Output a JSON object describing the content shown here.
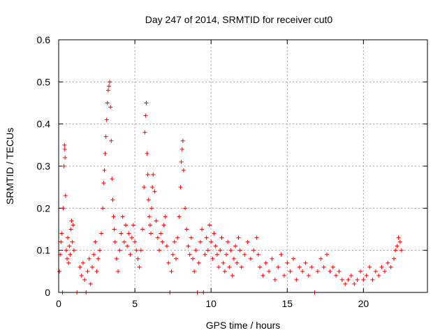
{
  "chart_data": {
    "type": "scatter",
    "title": "Day 247 of 2014, SRMTID for receiver cut0",
    "xlabel": "GPS time / hours",
    "ylabel": "SRMTID / TECUs",
    "xlim": [
      0,
      24.2
    ],
    "ylim": [
      0,
      0.6
    ],
    "xticks": [
      0,
      5,
      10,
      15,
      20
    ],
    "yticks": [
      0,
      0.1,
      0.2,
      0.3,
      0.4,
      0.5,
      0.6
    ],
    "xtick_labels": [
      "0",
      "5",
      "10",
      "15",
      "20"
    ],
    "ytick_labels": [
      "0",
      "0.1",
      "0.2",
      "0.3",
      "0.4",
      "0.5",
      "0.6"
    ],
    "grid": true,
    "marker": "+",
    "color": "#ff0000",
    "series": [
      {
        "name": "SRMTID",
        "points": [
          [
            0.05,
            0.05
          ],
          [
            0.1,
            0.09
          ],
          [
            0.15,
            0.12
          ],
          [
            0.2,
            0.14
          ],
          [
            0.25,
            0.0
          ],
          [
            0.3,
            0.2
          ],
          [
            0.35,
            0.3
          ],
          [
            0.38,
            0.35
          ],
          [
            0.4,
            0.34
          ],
          [
            0.42,
            0.32
          ],
          [
            0.45,
            0.23
          ],
          [
            0.5,
            0.1
          ],
          [
            0.55,
            0.08
          ],
          [
            0.6,
            0.13
          ],
          [
            0.65,
            0.07
          ],
          [
            0.7,
            0.11
          ],
          [
            0.75,
            0.09
          ],
          [
            0.8,
            0.15
          ],
          [
            0.85,
            0.17
          ],
          [
            0.9,
            0.12
          ],
          [
            0.95,
            0.16
          ],
          [
            1.0,
            0.1
          ],
          [
            1.2,
            0.0
          ],
          [
            1.4,
            0.06
          ],
          [
            1.5,
            0.04
          ],
          [
            1.6,
            0.07
          ],
          [
            1.7,
            0.03
          ],
          [
            1.8,
            0.0
          ],
          [
            1.9,
            0.05
          ],
          [
            2.0,
            0.08
          ],
          [
            2.1,
            0.02
          ],
          [
            2.2,
            0.06
          ],
          [
            2.3,
            0.09
          ],
          [
            2.4,
            0.12
          ],
          [
            2.5,
            0.05
          ],
          [
            2.6,
            0.08
          ],
          [
            2.7,
            0.1
          ],
          [
            2.8,
            0.14
          ],
          [
            2.9,
            0.2
          ],
          [
            2.95,
            0.26
          ],
          [
            3.0,
            0.29
          ],
          [
            3.05,
            0.33
          ],
          [
            3.1,
            0.37
          ],
          [
            3.15,
            0.41
          ],
          [
            3.2,
            0.45
          ],
          [
            3.25,
            0.48
          ],
          [
            3.3,
            0.49
          ],
          [
            3.35,
            0.5
          ],
          [
            3.4,
            0.44
          ],
          [
            3.45,
            0.36
          ],
          [
            3.5,
            0.27
          ],
          [
            3.55,
            0.22
          ],
          [
            3.6,
            0.18
          ],
          [
            3.65,
            0.15
          ],
          [
            3.7,
            0.12
          ],
          [
            3.8,
            0.08
          ],
          [
            3.9,
            0.05
          ],
          [
            4.0,
            0.1
          ],
          [
            4.1,
            0.14
          ],
          [
            4.2,
            0.18
          ],
          [
            4.3,
            0.12
          ],
          [
            4.4,
            0.16
          ],
          [
            4.5,
            0.11
          ],
          [
            4.6,
            0.14
          ],
          [
            4.7,
            0.09
          ],
          [
            4.8,
            0.13
          ],
          [
            4.9,
            0.16
          ],
          [
            5.0,
            0.12
          ],
          [
            5.1,
            0.1
          ],
          [
            5.2,
            0.08
          ],
          [
            5.3,
            0.06
          ],
          [
            5.4,
            0.1
          ],
          [
            5.5,
            0.15
          ],
          [
            5.6,
            0.25
          ],
          [
            5.65,
            0.38
          ],
          [
            5.7,
            0.42
          ],
          [
            5.75,
            0.45
          ],
          [
            5.8,
            0.33
          ],
          [
            5.85,
            0.28
          ],
          [
            5.9,
            0.22
          ],
          [
            5.95,
            0.18
          ],
          [
            6.0,
            0.16
          ],
          [
            6.05,
            0.14
          ],
          [
            6.1,
            0.2
          ],
          [
            6.15,
            0.25
          ],
          [
            6.2,
            0.28
          ],
          [
            6.3,
            0.24
          ],
          [
            6.4,
            0.17
          ],
          [
            6.5,
            0.13
          ],
          [
            6.6,
            0.1
          ],
          [
            6.7,
            0.14
          ],
          [
            6.8,
            0.12
          ],
          [
            6.9,
            0.16
          ],
          [
            7.0,
            0.18
          ],
          [
            7.1,
            0.11
          ],
          [
            7.2,
            0.07
          ],
          [
            7.3,
            0.0
          ],
          [
            7.4,
            0.05
          ],
          [
            7.5,
            0.09
          ],
          [
            7.6,
            0.12
          ],
          [
            7.7,
            0.08
          ],
          [
            7.8,
            0.13
          ],
          [
            7.9,
            0.18
          ],
          [
            8.0,
            0.25
          ],
          [
            8.05,
            0.31
          ],
          [
            8.1,
            0.34
          ],
          [
            8.15,
            0.36
          ],
          [
            8.2,
            0.29
          ],
          [
            8.3,
            0.2
          ],
          [
            8.4,
            0.15
          ],
          [
            8.5,
            0.11
          ],
          [
            8.6,
            0.09
          ],
          [
            8.7,
            0.13
          ],
          [
            8.8,
            0.08
          ],
          [
            8.9,
            0.05
          ],
          [
            9.0,
            0.1
          ],
          [
            9.1,
            0.0
          ],
          [
            9.2,
            0.07
          ],
          [
            9.3,
            0.12
          ],
          [
            9.4,
            0.15
          ],
          [
            9.5,
            0.0
          ],
          [
            9.6,
            0.09
          ],
          [
            9.7,
            0.13
          ],
          [
            9.8,
            0.1
          ],
          [
            9.9,
            0.16
          ],
          [
            10.0,
            0.12
          ],
          [
            10.1,
            0.08
          ],
          [
            10.2,
            0.14
          ],
          [
            10.3,
            0.11
          ],
          [
            10.4,
            0.09
          ],
          [
            10.5,
            0.06
          ],
          [
            10.6,
            0.1
          ],
          [
            10.7,
            0.13
          ],
          [
            10.8,
            0.07
          ],
          [
            10.9,
            0.05
          ],
          [
            11.0,
            0.09
          ],
          [
            11.1,
            0.12
          ],
          [
            11.2,
            0.06
          ],
          [
            11.3,
            0.1
          ],
          [
            11.4,
            0.04
          ],
          [
            11.5,
            0.08
          ],
          [
            11.6,
            0.11
          ],
          [
            11.7,
            0.07
          ],
          [
            11.8,
            0.13
          ],
          [
            11.9,
            0.1
          ],
          [
            12.0,
            0.06
          ],
          [
            12.2,
            0.09
          ],
          [
            12.4,
            0.12
          ],
          [
            12.6,
            0.08
          ],
          [
            12.8,
            0.1
          ],
          [
            13.0,
            0.13
          ],
          [
            13.1,
            0.09
          ],
          [
            13.2,
            0.06
          ],
          [
            13.4,
            0.04
          ],
          [
            13.6,
            0.07
          ],
          [
            13.8,
            0.05
          ],
          [
            14.0,
            0.08
          ],
          [
            14.2,
            0.03
          ],
          [
            14.4,
            0.06
          ],
          [
            14.6,
            0.09
          ],
          [
            14.8,
            0.04
          ],
          [
            15.0,
            0.07
          ],
          [
            15.2,
            0.05
          ],
          [
            15.4,
            0.08
          ],
          [
            15.6,
            0.03
          ],
          [
            15.8,
            0.06
          ],
          [
            16.0,
            0.05
          ],
          [
            16.2,
            0.07
          ],
          [
            16.4,
            0.04
          ],
          [
            16.6,
            0.06
          ],
          [
            16.8,
            0.0
          ],
          [
            17.0,
            0.05
          ],
          [
            17.2,
            0.08
          ],
          [
            17.4,
            0.06
          ],
          [
            17.6,
            0.09
          ],
          [
            17.8,
            0.05
          ],
          [
            18.0,
            0.06
          ],
          [
            18.2,
            0.04
          ],
          [
            18.4,
            0.05
          ],
          [
            18.6,
            0.03
          ],
          [
            18.8,
            0.02
          ],
          [
            19.0,
            0.03
          ],
          [
            19.2,
            0.04
          ],
          [
            19.4,
            0.02
          ],
          [
            19.6,
            0.03
          ],
          [
            19.8,
            0.05
          ],
          [
            20.0,
            0.03
          ],
          [
            20.2,
            0.04
          ],
          [
            20.4,
            0.06
          ],
          [
            20.6,
            0.03
          ],
          [
            20.8,
            0.05
          ],
          [
            21.0,
            0.04
          ],
          [
            21.2,
            0.06
          ],
          [
            21.4,
            0.05
          ],
          [
            21.6,
            0.07
          ],
          [
            21.8,
            0.06
          ],
          [
            22.0,
            0.08
          ],
          [
            22.1,
            0.1
          ],
          [
            22.2,
            0.11
          ],
          [
            22.3,
            0.13
          ],
          [
            22.4,
            0.12
          ],
          [
            22.5,
            0.1
          ]
        ]
      }
    ]
  }
}
